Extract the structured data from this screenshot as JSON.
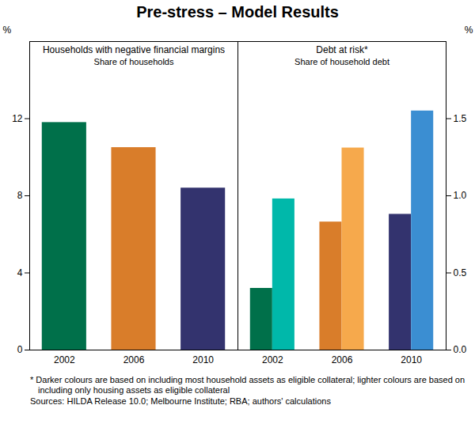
{
  "title": "Pre-stress – Model Results",
  "chart_data": [
    {
      "type": "bar",
      "title": "Households with negative financial margins",
      "subtitle": "Share of households",
      "ylabel": "%",
      "categories": [
        "2002",
        "2006",
        "2010"
      ],
      "values": [
        11.8,
        10.5,
        8.4
      ],
      "colors": [
        "#00704a",
        "#d97d2a",
        "#33336e"
      ],
      "ylim": [
        0,
        16
      ],
      "yticks": [
        0,
        4,
        8,
        12
      ],
      "grid": false
    },
    {
      "type": "bar",
      "title": "Debt at risk*",
      "subtitle": "Share of household debt",
      "ylabel": "%",
      "categories": [
        "2002",
        "2006",
        "2010"
      ],
      "series": [
        {
          "colors": [
            "#00704a",
            "#d97d2a",
            "#33336e"
          ],
          "values": [
            0.4,
            0.83,
            0.88
          ]
        },
        {
          "colors": [
            "#00b8aa",
            "#f6a94c",
            "#3b8ed2"
          ],
          "values": [
            0.98,
            1.31,
            1.55
          ]
        }
      ],
      "ylim": [
        0,
        2
      ],
      "yticks": [
        {
          "value": 0,
          "label": "0.0"
        },
        0.5,
        {
          "value": 1,
          "label": "1.0"
        },
        1.5
      ],
      "grid": false
    }
  ],
  "footnote": "*  Darker colours are based on including most household assets as eligible collateral; lighter colours are based on including only housing assets as eligible collateral",
  "sources": "Sources: HILDA Release 10.0; Melbourne Institute; RBA; authors' calculations"
}
